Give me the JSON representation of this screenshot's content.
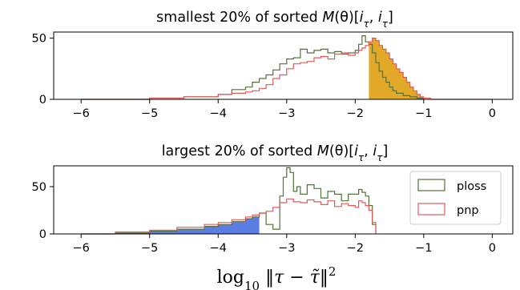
{
  "chart_data": [
    {
      "type": "histogram",
      "title_parts": {
        "pre": "smallest 20% of sorted ",
        "M": "M",
        "paren": "(θ)[",
        "i1": "i",
        "sub1": "τ",
        "comma": ", ",
        "i2": "i",
        "sub2": "τ",
        "close": "]"
      },
      "xlim": [
        -6.4,
        0.3
      ],
      "ylim": [
        0,
        55
      ],
      "x_ticks": [
        -6,
        -5,
        -4,
        -3,
        -2,
        -1,
        0
      ],
      "x_tick_labels": [
        "−6",
        "−5",
        "−4",
        "−3",
        "−2",
        "−1",
        "0"
      ],
      "y_ticks": [
        0,
        50
      ],
      "y_tick_labels": [
        "0",
        "50"
      ],
      "grid": false,
      "legend": false,
      "series": [
        {
          "name": "ploss",
          "color": "#55703a",
          "x": [
            -6.0,
            -5.0,
            -4.5,
            -4.0,
            -3.8,
            -3.6,
            -3.5,
            -3.4,
            -3.3,
            -3.2,
            -3.1,
            -3.0,
            -2.9,
            -2.8,
            -2.7,
            -2.6,
            -2.5,
            -2.4,
            -2.3,
            -2.2,
            -2.1,
            -2.0,
            -1.95,
            -1.9,
            -1.85,
            -1.8,
            -1.75,
            -1.7,
            -1.65,
            -1.6,
            -1.55,
            -1.5,
            -1.45,
            -1.4,
            -1.3,
            -1.2,
            -1.1,
            -1.0
          ],
          "y": [
            0,
            1,
            2,
            4,
            8,
            10,
            14,
            17,
            20,
            24,
            29,
            33,
            34,
            41,
            38,
            40,
            41,
            38,
            39,
            37,
            38,
            40,
            45,
            52,
            47,
            45,
            38,
            30,
            23,
            18,
            14,
            10,
            7,
            5,
            3,
            2,
            1,
            0
          ]
        },
        {
          "name": "pnp",
          "color": "#e05a5a",
          "x": [
            -6.0,
            -5.0,
            -4.5,
            -4.0,
            -3.8,
            -3.6,
            -3.5,
            -3.4,
            -3.3,
            -3.2,
            -3.1,
            -3.0,
            -2.9,
            -2.8,
            -2.7,
            -2.6,
            -2.5,
            -2.4,
            -2.3,
            -2.2,
            -2.1,
            -2.0,
            -1.95,
            -1.9,
            -1.85,
            -1.8,
            -1.75,
            -1.7,
            -1.65,
            -1.6,
            -1.55,
            -1.5,
            -1.45,
            -1.4,
            -1.35,
            -1.3,
            -1.25,
            -1.2,
            -1.15,
            -1.1,
            -1.05,
            -1.0,
            -0.9,
            -0.7,
            -0.5,
            -0.3,
            0.0
          ],
          "y": [
            0,
            1,
            2,
            4,
            5,
            6,
            7,
            9,
            12,
            17,
            20,
            25,
            29,
            30,
            31,
            34,
            35,
            33,
            37,
            38,
            36,
            38,
            40,
            42,
            44,
            47,
            50,
            48,
            44,
            41,
            38,
            33,
            29,
            25,
            22,
            18,
            14,
            10,
            7,
            4,
            2,
            1,
            0,
            0,
            0,
            0,
            0
          ]
        }
      ]
    },
    {
      "type": "histogram",
      "title_parts": {
        "pre": "largest 20% of sorted ",
        "M": "M",
        "paren": "(θ)[",
        "i1": "i",
        "sub1": "τ",
        "comma": ", ",
        "i2": "i",
        "sub2": "τ",
        "close": "]"
      },
      "xlim": [
        -6.4,
        0.3
      ],
      "ylim": [
        0,
        72
      ],
      "x_ticks": [
        -6,
        -5,
        -4,
        -3,
        -2,
        -1,
        0
      ],
      "x_tick_labels": [
        "−6",
        "−5",
        "−4",
        "−3",
        "−2",
        "−1",
        "0"
      ],
      "y_ticks": [
        0,
        50
      ],
      "y_tick_labels": [
        "0",
        "50"
      ],
      "grid": false,
      "legend": true,
      "legend_loc": "right",
      "x_label_parts": {
        "log": "log",
        "sub": "10",
        "norm_open": " ‖",
        "tau": "τ",
        "minus": " − ",
        "tautilde": "τ̃",
        "norm_close": "‖",
        "sup": "2"
      },
      "series": [
        {
          "name": "ploss",
          "color": "#55703a",
          "x": [
            -6.0,
            -5.5,
            -5.0,
            -4.6,
            -4.2,
            -4.0,
            -3.8,
            -3.6,
            -3.5,
            -3.4,
            -3.3,
            -3.2,
            -3.1,
            -3.05,
            -3.0,
            -2.95,
            -2.9,
            -2.85,
            -2.8,
            -2.7,
            -2.6,
            -2.5,
            -2.4,
            -2.3,
            -2.2,
            -2.1,
            -2.0,
            -1.95,
            -1.9,
            -1.85,
            -1.8,
            -1.75,
            -1.7
          ],
          "y": [
            0,
            1,
            3,
            5,
            8,
            10,
            13,
            16,
            18,
            22,
            10,
            5,
            40,
            60,
            70,
            65,
            45,
            50,
            42,
            52,
            48,
            38,
            45,
            42,
            35,
            42,
            42,
            47,
            44,
            40,
            30,
            10,
            2
          ]
        },
        {
          "name": "pnp",
          "color": "#e05a5a",
          "x": [
            -6.0,
            -5.5,
            -5.0,
            -4.6,
            -4.2,
            -4.0,
            -3.8,
            -3.6,
            -3.5,
            -3.4,
            -3.3,
            -3.2,
            -3.1,
            -3.0,
            -2.9,
            -2.8,
            -2.7,
            -2.6,
            -2.5,
            -2.4,
            -2.3,
            -2.2,
            -2.1,
            -2.0,
            -1.95,
            -1.9,
            -1.85,
            -1.8,
            -1.75,
            -1.7
          ],
          "y": [
            0,
            2,
            4,
            7,
            10,
            12,
            15,
            18,
            20,
            22,
            24,
            28,
            33,
            37,
            34,
            33,
            36,
            34,
            31,
            35,
            29,
            32,
            30,
            28,
            35,
            33,
            30,
            25,
            12,
            2
          ]
        }
      ]
    }
  ]
}
